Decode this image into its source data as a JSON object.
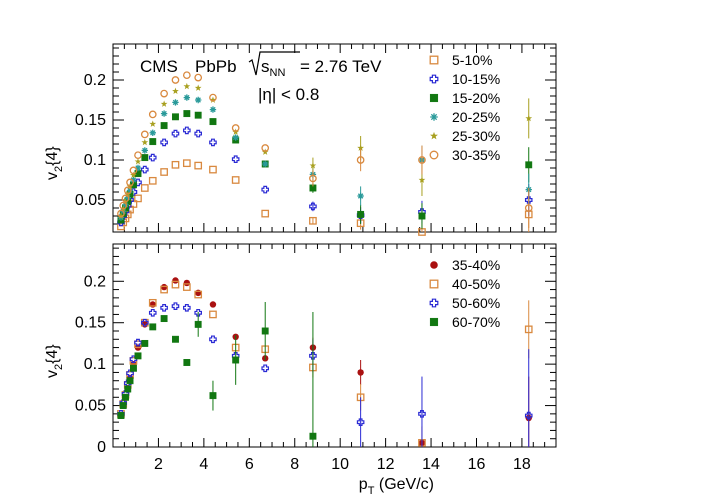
{
  "chart_data": {
    "type": "scatter",
    "xlabel": "p",
    "xlabel_sub": "T",
    "xlabel_unit": " (GeV/c)",
    "xlim": [
      0,
      19.5
    ],
    "x_ticks": [
      "2",
      "4",
      "6",
      "8",
      "10",
      "12",
      "14",
      "16",
      "18"
    ],
    "annotations": {
      "experiment": "CMS",
      "system": "PbPb",
      "energy_sym": "s",
      "energy_sub": "NN",
      "energy_value": " = 2.76 TeV",
      "eta_cut": "|η| < 0.8"
    },
    "panels": [
      {
        "ylabel": "v",
        "ylabel_sub": "2",
        "ylabel_rest": "{4}",
        "ylim": [
          0.01,
          0.245
        ],
        "y_ticks": [
          "0.05",
          "0.1",
          "0.15",
          "0.2"
        ],
        "legend_position": "top-right",
        "series": [
          {
            "name": "5-10%",
            "marker": "open-square",
            "color": "#d9893f",
            "x": [
              0.35,
              0.45,
              0.55,
              0.65,
              0.75,
              0.9,
              1.1,
              1.4,
              1.75,
              2.25,
              2.75,
              3.25,
              3.75,
              4.4,
              5.4,
              6.7,
              8.8,
              10.9,
              13.6,
              18.3
            ],
            "y": [
              0.017,
              0.022,
              0.027,
              0.032,
              0.038,
              0.045,
              0.052,
              0.065,
              0.074,
              0.085,
              0.094,
              0.096,
              0.093,
              0.088,
              0.075,
              0.033,
              0.024,
              0.021,
              0.01,
              0.032
            ],
            "err": [
              0,
              0,
              0,
              0,
              0,
              0,
              0,
              0,
              0,
              0,
              0,
              0,
              0,
              0,
              0,
              0,
              0.004,
              0.008,
              0.012,
              0.03
            ]
          },
          {
            "name": "10-15%",
            "marker": "open-cross",
            "color": "#2a2ad4",
            "x": [
              0.35,
              0.45,
              0.55,
              0.65,
              0.75,
              0.9,
              1.1,
              1.4,
              1.75,
              2.25,
              2.75,
              3.25,
              3.75,
              4.4,
              5.4,
              6.7,
              8.8,
              10.9,
              13.6,
              18.3
            ],
            "y": [
              0.022,
              0.03,
              0.036,
              0.043,
              0.05,
              0.06,
              0.072,
              0.088,
              0.103,
              0.122,
              0.133,
              0.137,
              0.133,
              0.122,
              0.101,
              0.063,
              0.042,
              0.031,
              0.035,
              0.05
            ],
            "err": [
              0,
              0,
              0,
              0,
              0,
              0,
              0,
              0,
              0,
              0,
              0,
              0,
              0,
              0,
              0,
              0,
              0.006,
              0.01,
              0.014,
              0.02
            ]
          },
          {
            "name": "15-20%",
            "marker": "filled-square",
            "color": "#117711",
            "x": [
              0.35,
              0.45,
              0.55,
              0.65,
              0.75,
              0.9,
              1.1,
              1.4,
              1.75,
              2.25,
              2.75,
              3.25,
              3.75,
              4.4,
              5.4,
              6.7,
              8.8,
              10.9,
              13.6,
              18.3
            ],
            "y": [
              0.025,
              0.033,
              0.04,
              0.048,
              0.057,
              0.069,
              0.083,
              0.103,
              0.123,
              0.143,
              0.154,
              0.158,
              0.156,
              0.148,
              0.125,
              0.095,
              0.065,
              0.032,
              0.03,
              0.094
            ],
            "err": [
              0,
              0,
              0,
              0,
              0,
              0,
              0,
              0,
              0,
              0,
              0,
              0,
              0,
              0,
              0,
              0,
              0.006,
              0.012,
              0.016,
              0.022
            ]
          },
          {
            "name": "20-25%",
            "marker": "asterisk",
            "color": "#2a9a9a",
            "x": [
              0.35,
              0.45,
              0.55,
              0.65,
              0.75,
              0.9,
              1.1,
              1.4,
              1.75,
              2.25,
              2.75,
              3.25,
              3.75,
              4.4,
              5.4,
              6.7,
              8.8,
              10.9,
              13.6,
              18.3
            ],
            "y": [
              0.028,
              0.036,
              0.044,
              0.053,
              0.062,
              0.075,
              0.09,
              0.112,
              0.134,
              0.158,
              0.172,
              0.178,
              0.175,
              0.163,
              0.128,
              0.095,
              0.082,
              0.055,
              0.1,
              0.063
            ],
            "err": [
              0,
              0,
              0,
              0,
              0,
              0,
              0,
              0,
              0,
              0,
              0,
              0,
              0,
              0,
              0,
              0,
              0.008,
              0.012,
              0.018,
              0.02
            ]
          },
          {
            "name": "25-30%",
            "marker": "star",
            "color": "#a8a020",
            "x": [
              0.35,
              0.45,
              0.55,
              0.65,
              0.75,
              0.9,
              1.1,
              1.4,
              1.75,
              2.25,
              2.75,
              3.25,
              3.75,
              4.4,
              5.4,
              6.7,
              8.8,
              10.9,
              13.6,
              18.3
            ],
            "y": [
              0.03,
              0.039,
              0.048,
              0.057,
              0.067,
              0.081,
              0.098,
              0.122,
              0.145,
              0.17,
              0.186,
              0.192,
              0.19,
              0.175,
              0.135,
              0.11,
              0.093,
              0.115,
              0.075,
              0.152
            ],
            "err": [
              0,
              0,
              0,
              0,
              0,
              0,
              0,
              0,
              0,
              0,
              0,
              0,
              0,
              0,
              0,
              0,
              0.01,
              0.015,
              0.02,
              0.025
            ]
          },
          {
            "name": "30-35%",
            "marker": "open-circle",
            "color": "#d9893f",
            "x": [
              0.35,
              0.45,
              0.55,
              0.65,
              0.75,
              0.9,
              1.1,
              1.4,
              1.75,
              2.25,
              2.75,
              3.25,
              3.75,
              4.4,
              5.4,
              6.7,
              8.8,
              10.9,
              13.6,
              18.3
            ],
            "y": [
              0.033,
              0.043,
              0.052,
              0.062,
              0.072,
              0.087,
              0.106,
              0.132,
              0.157,
              0.183,
              0.2,
              0.206,
              0.203,
              0.178,
              0.14,
              0.115,
              0.077,
              0.1,
              0.1,
              0.04
            ],
            "err": [
              0,
              0,
              0,
              0,
              0,
              0,
              0,
              0,
              0,
              0,
              0,
              0,
              0,
              0,
              0,
              0,
              0.01,
              0.014,
              0.018,
              0.025
            ]
          }
        ]
      },
      {
        "ylabel": "v",
        "ylabel_sub": "2",
        "ylabel_rest": "{4}",
        "ylim": [
          0,
          0.245
        ],
        "y_ticks": [
          "0",
          "0.05",
          "0.1",
          "0.15",
          "0.2"
        ],
        "legend_position": "top-right",
        "series": [
          {
            "name": "35-40%",
            "marker": "filled-circle",
            "color": "#aa1111",
            "x": [
              0.35,
              0.45,
              0.55,
              0.65,
              0.75,
              0.9,
              1.1,
              1.4,
              1.75,
              2.25,
              2.75,
              3.25,
              3.75,
              4.4,
              5.4,
              6.7,
              8.8,
              10.9,
              13.6,
              18.3
            ],
            "y": [
              0.038,
              0.05,
              0.06,
              0.071,
              0.083,
              0.1,
              0.12,
              0.148,
              0.172,
              0.193,
              0.201,
              0.198,
              0.186,
              0.172,
              0.133,
              0.107,
              0.12,
              0.09,
              0.005,
              0.035
            ],
            "err": [
              0,
              0,
              0,
              0,
              0,
              0,
              0,
              0,
              0,
              0,
              0,
              0,
              0,
              0,
              0,
              0,
              0.012,
              0.015,
              0.02,
              0.05
            ]
          },
          {
            "name": "40-50%",
            "marker": "open-square",
            "color": "#d9893f",
            "x": [
              0.35,
              0.45,
              0.55,
              0.65,
              0.75,
              0.9,
              1.1,
              1.4,
              1.75,
              2.25,
              2.75,
              3.25,
              3.75,
              4.4,
              5.4,
              6.7,
              8.8,
              10.9,
              13.6,
              18.3
            ],
            "y": [
              0.04,
              0.052,
              0.063,
              0.075,
              0.087,
              0.104,
              0.124,
              0.15,
              0.174,
              0.19,
              0.196,
              0.193,
              0.184,
              0.16,
              0.12,
              0.118,
              0.096,
              0.06,
              0.005,
              0.142
            ],
            "err": [
              0,
              0,
              0,
              0,
              0,
              0,
              0,
              0,
              0,
              0,
              0,
              0,
              0,
              0,
              0,
              0,
              0.012,
              0.016,
              0.02,
              0.035
            ]
          },
          {
            "name": "50-60%",
            "marker": "open-cross",
            "color": "#2a2ad4",
            "x": [
              0.35,
              0.45,
              0.55,
              0.65,
              0.75,
              0.9,
              1.1,
              1.4,
              1.75,
              2.25,
              2.75,
              3.25,
              3.75,
              4.4,
              5.4,
              6.7,
              8.8,
              10.9,
              13.6,
              18.3
            ],
            "y": [
              0.04,
              0.053,
              0.064,
              0.077,
              0.089,
              0.106,
              0.126,
              0.15,
              0.162,
              0.168,
              0.17,
              0.168,
              0.162,
              0.13,
              0.11,
              0.095,
              0.11,
              0.03,
              0.04,
              0.038
            ],
            "err": [
              0,
              0,
              0,
              0,
              0,
              0,
              0,
              0,
              0,
              0,
              0,
              0,
              0,
              0,
              0,
              0,
              0.02,
              0.03,
              0.045,
              0.08
            ]
          },
          {
            "name": "60-70%",
            "marker": "filled-square",
            "color": "#117711",
            "x": [
              0.35,
              0.45,
              0.55,
              0.65,
              0.75,
              0.9,
              1.1,
              1.4,
              1.75,
              2.25,
              2.75,
              3.25,
              3.75,
              4.4,
              5.4,
              6.7,
              8.8,
              10.9,
              13.6,
              18.3
            ],
            "y": [
              0.038,
              0.05,
              0.06,
              0.07,
              0.08,
              0.095,
              0.11,
              0.125,
              0.145,
              0.155,
              0.13,
              0.102,
              0.148,
              0.062,
              0.105,
              0.14,
              0.013,
              null,
              null,
              null
            ],
            "err": [
              0,
              0,
              0,
              0,
              0,
              0,
              0,
              0,
              0,
              0,
              0,
              0,
              0.015,
              0.018,
              0.03,
              0.035,
              0.15,
              0,
              0,
              0
            ]
          }
        ]
      }
    ]
  }
}
